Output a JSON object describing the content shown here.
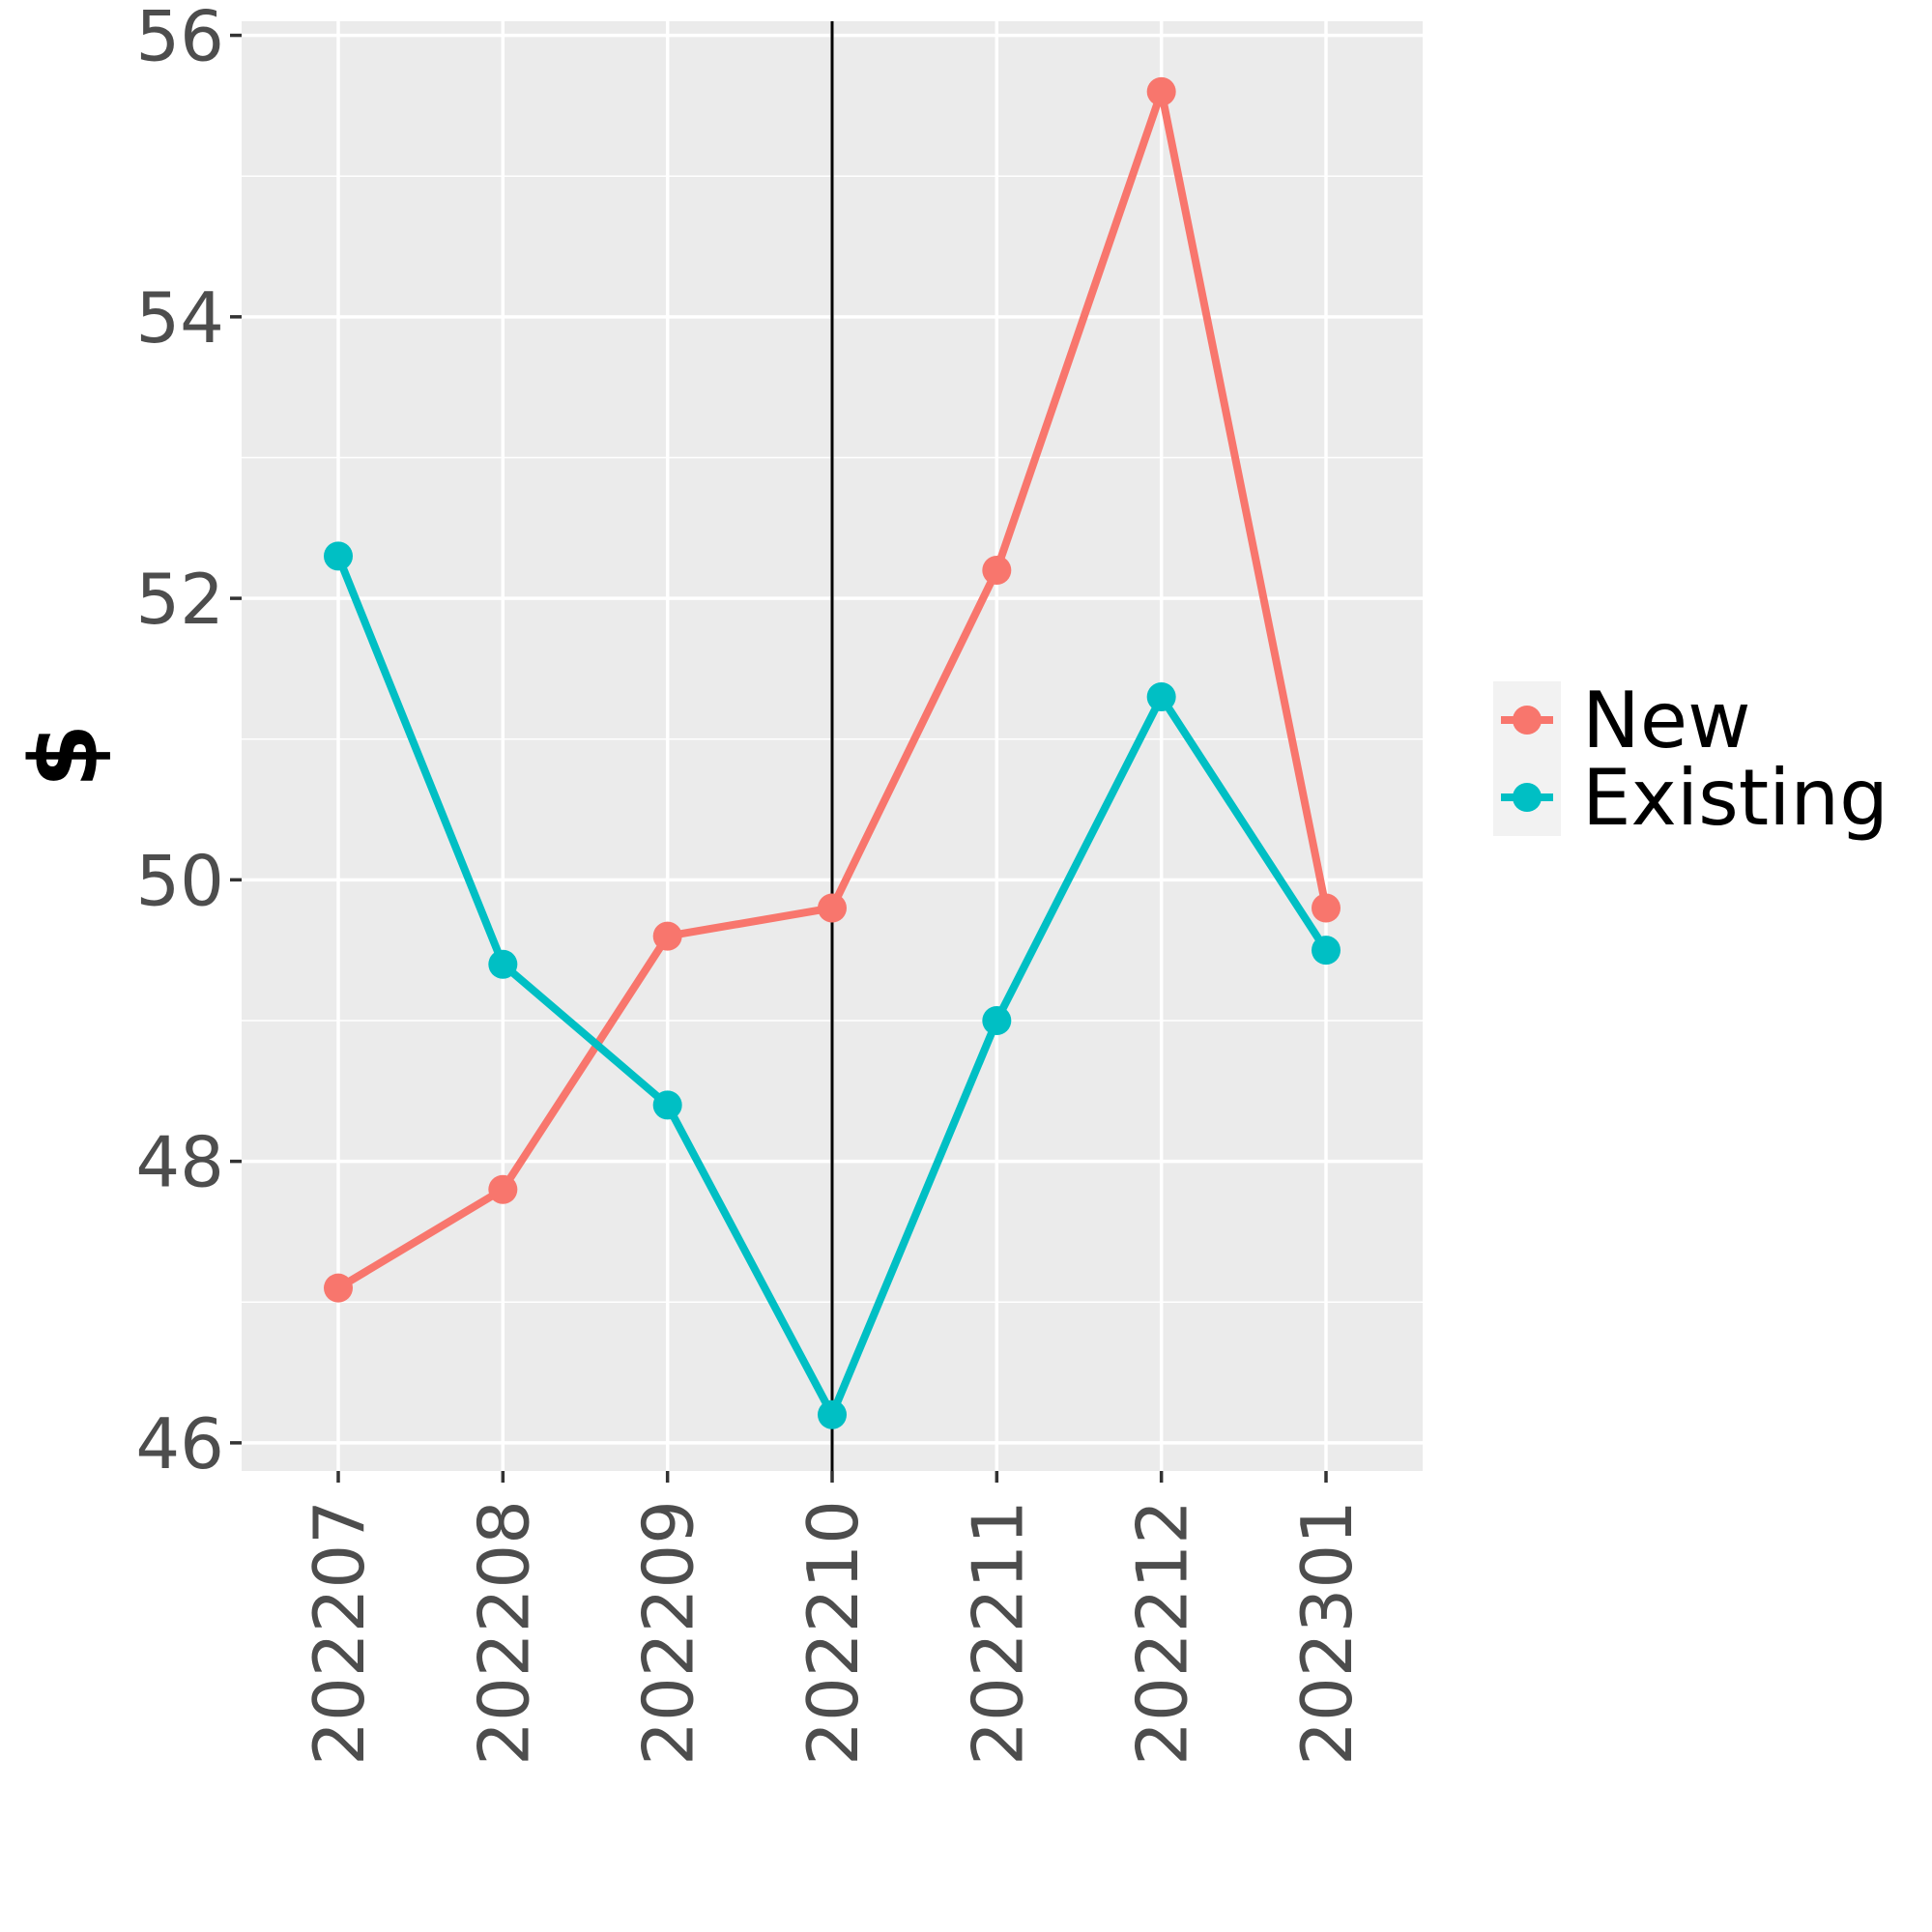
{
  "chart_data": {
    "type": "line",
    "categories": [
      "202207",
      "202208",
      "202209",
      "202210",
      "202211",
      "202212",
      "202301"
    ],
    "series": [
      {
        "name": "New",
        "color": "#F8766D",
        "values": [
          47.1,
          47.8,
          49.6,
          49.8,
          52.2,
          55.6,
          49.8
        ]
      },
      {
        "name": "Existing",
        "color": "#00BFC4",
        "values": [
          52.3,
          49.4,
          48.4,
          46.2,
          49.0,
          51.3,
          49.5
        ]
      }
    ],
    "title": "",
    "xlabel": "",
    "ylabel": "$",
    "ylim": [
      45.8,
      56.1
    ],
    "yticks": [
      46,
      48,
      50,
      52,
      54,
      56
    ],
    "reference_line": {
      "category": "202210",
      "color": "#000000"
    },
    "grid": true,
    "panel_background": "#EBEBEB",
    "legend_position": "right"
  }
}
